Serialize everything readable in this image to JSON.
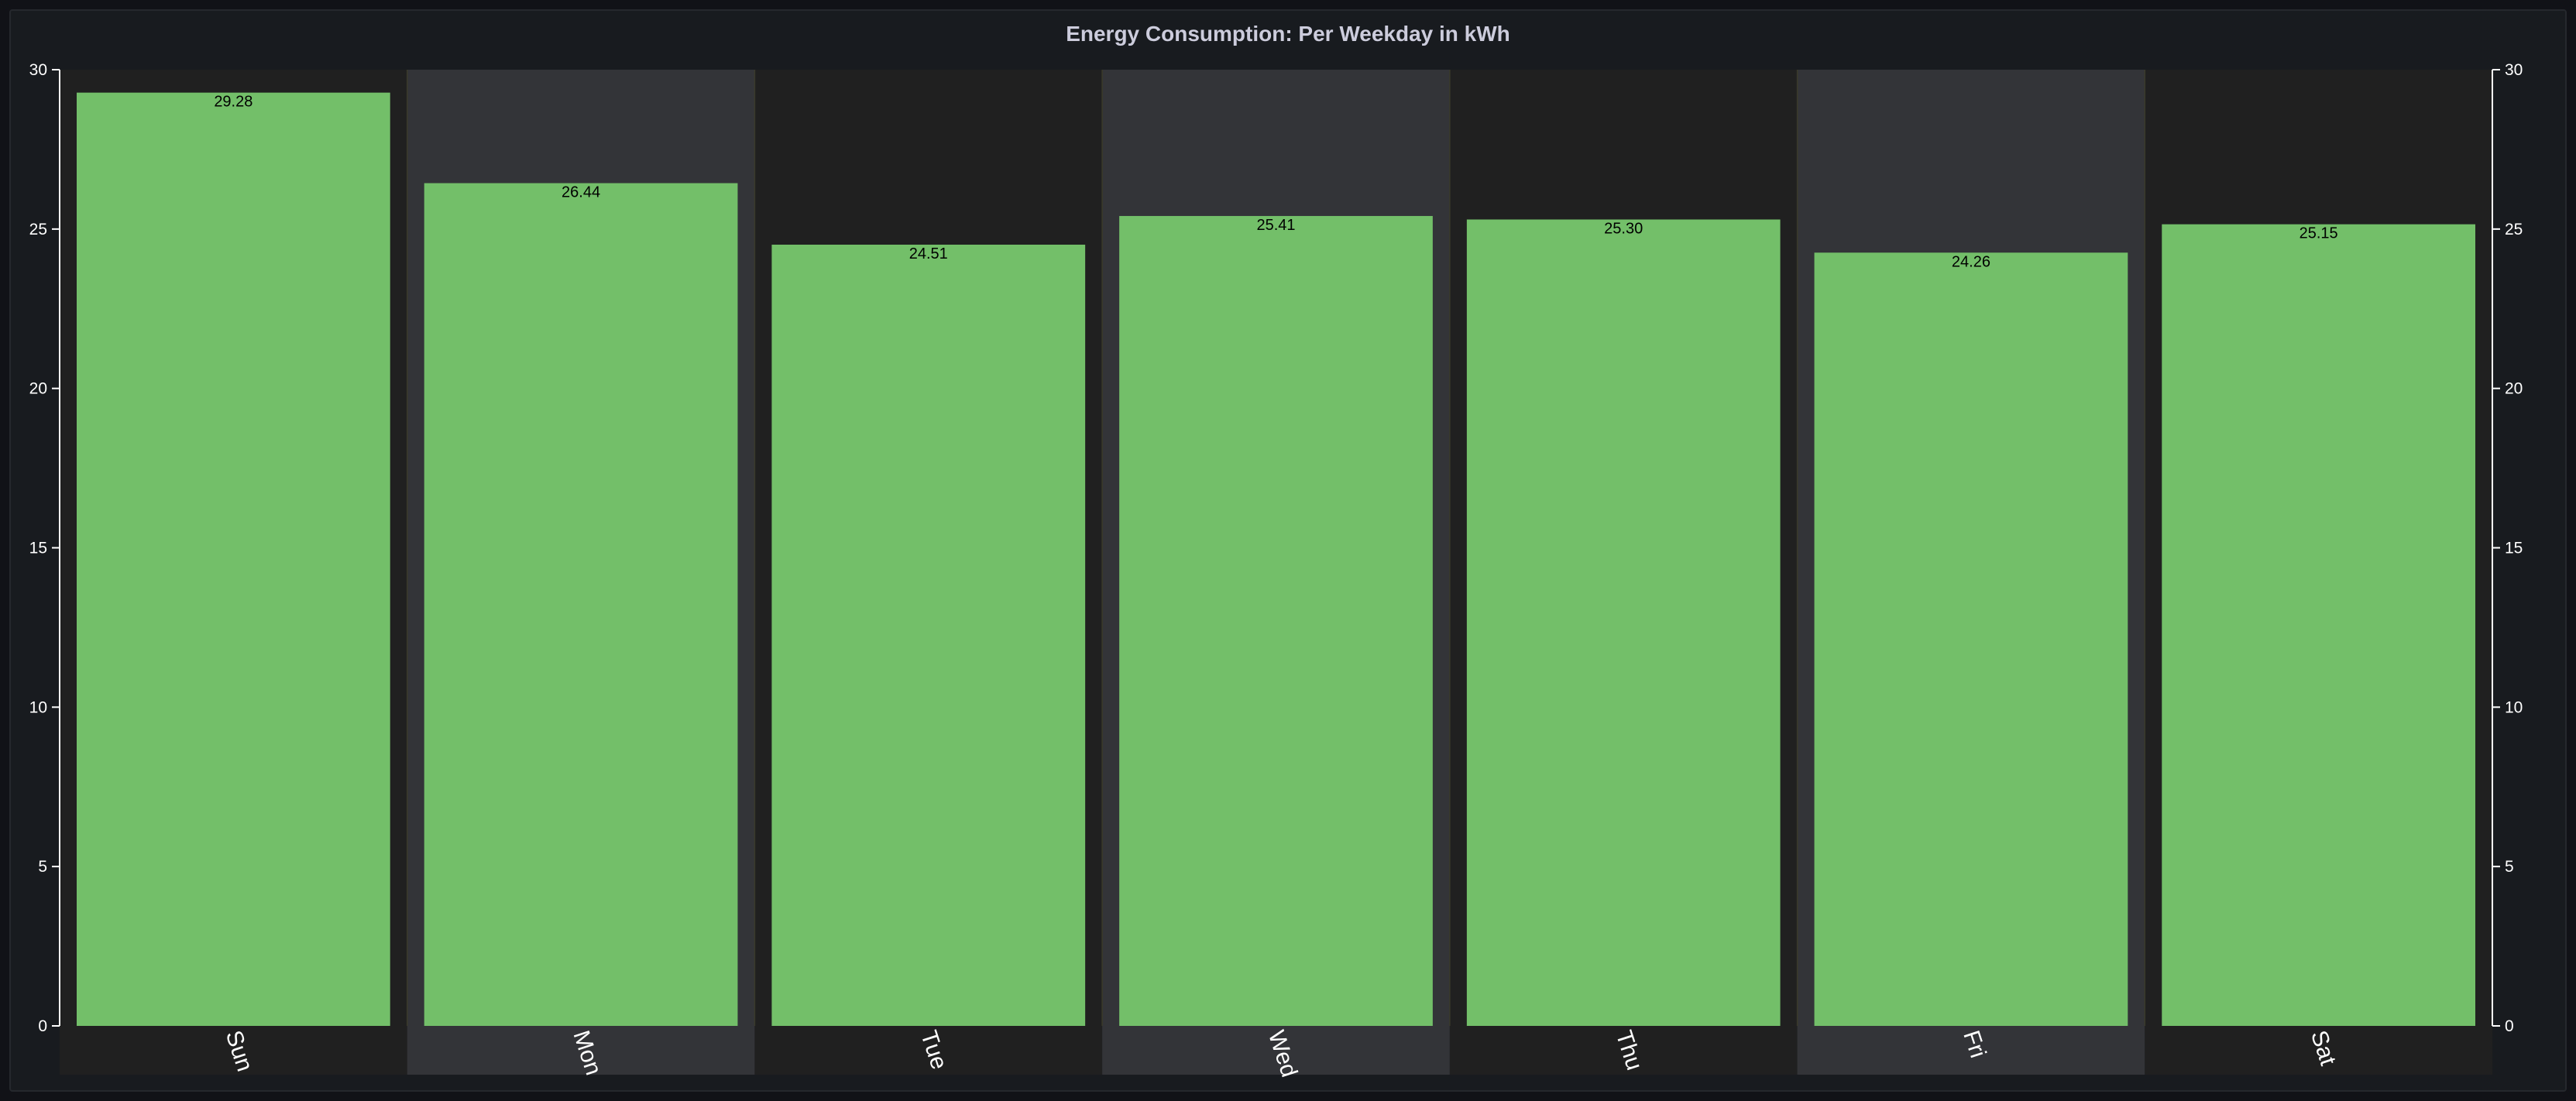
{
  "panel": {
    "title": "Energy Consumption: Per Weekday in kWh"
  },
  "chart_data": {
    "type": "bar",
    "title": "Energy Consumption: Per Weekday in kWh",
    "categories": [
      "Sun",
      "Mon",
      "Tue",
      "Wed",
      "Thu",
      "Fri",
      "Sat"
    ],
    "values": [
      29.28,
      26.44,
      24.51,
      25.41,
      25.3,
      24.26,
      25.15
    ],
    "value_labels": [
      "29.28",
      "26.44",
      "24.51",
      "25.41",
      "25.30",
      "24.26",
      "25.15"
    ],
    "ylim": [
      0,
      30
    ],
    "yticks": [
      0,
      5,
      10,
      15,
      20,
      25,
      30
    ],
    "right_axis": true,
    "bar_color": "#73bf69",
    "band_colors": [
      "#202020",
      "#333438"
    ],
    "xlabel": "",
    "ylabel": ""
  }
}
